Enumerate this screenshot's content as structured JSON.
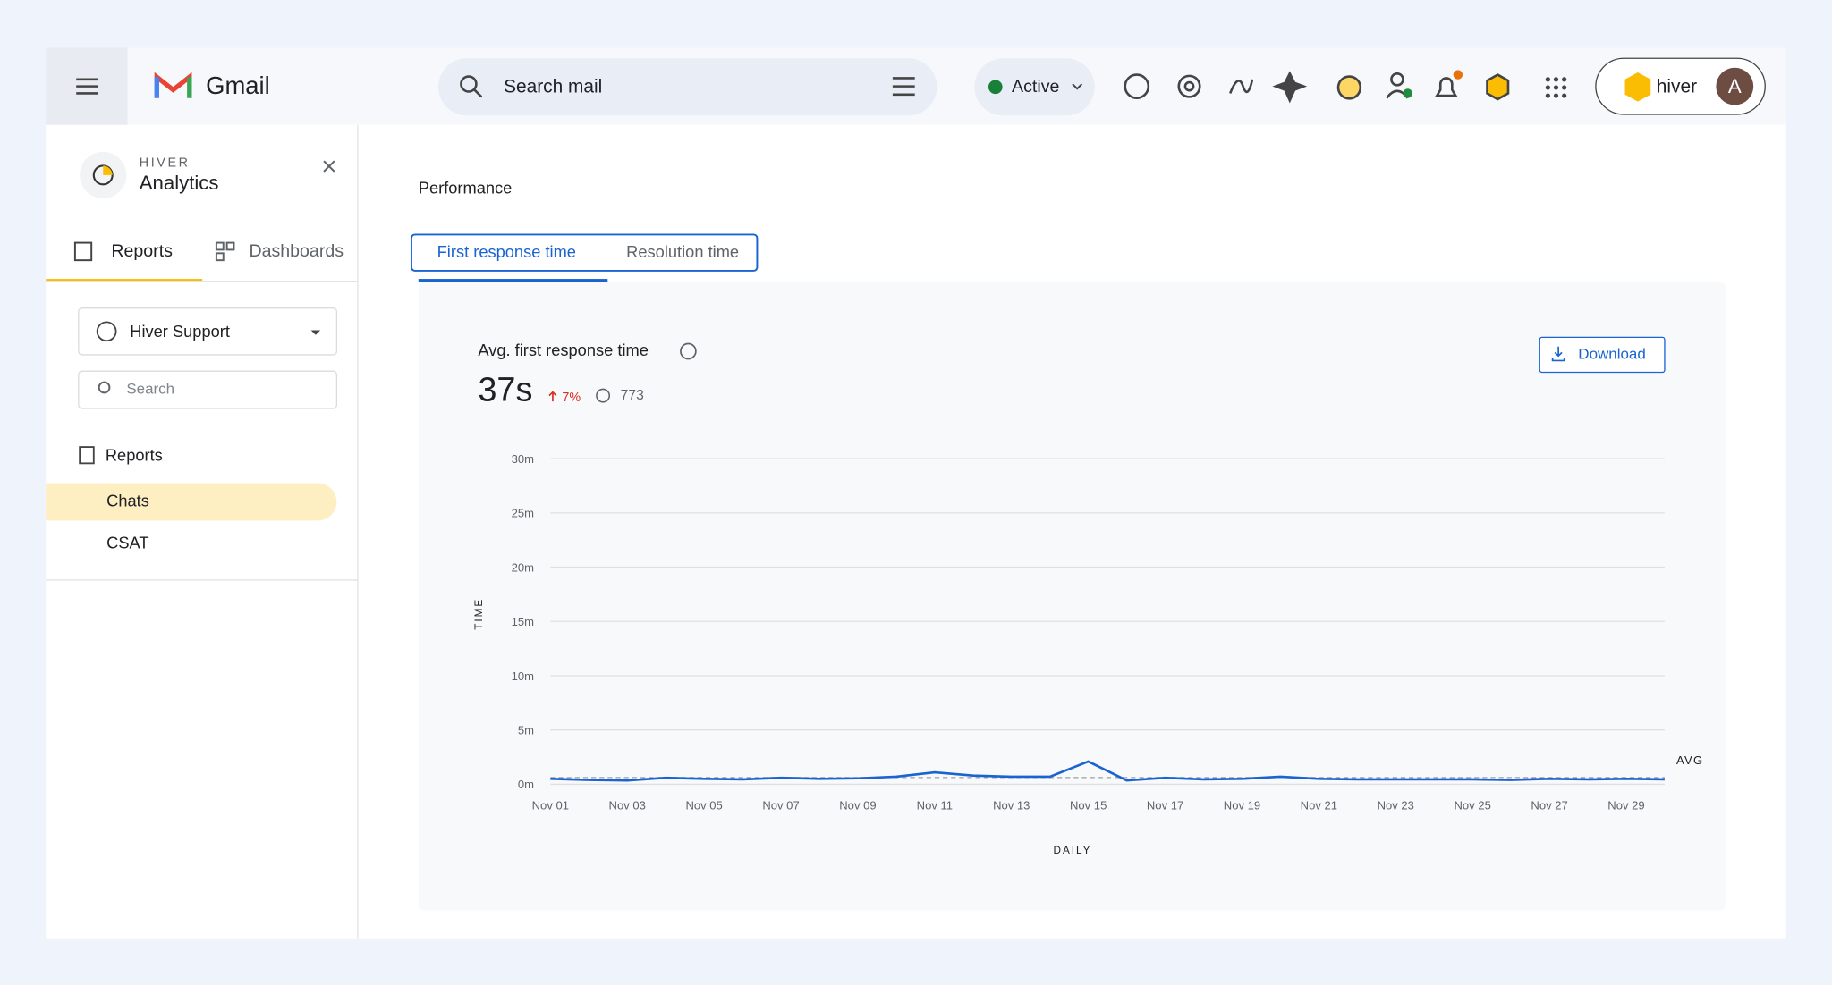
{
  "header": {
    "app_name": "Gmail",
    "search_placeholder": "Search mail",
    "status": "Active",
    "brand": "hiver",
    "avatar": "A"
  },
  "sidebar": {
    "brand": "HIVER",
    "title": "Analytics",
    "tabs": [
      "Reports",
      "Dashboards"
    ],
    "inbox": "Hiver Support",
    "search_placeholder": "Search",
    "section": "Reports",
    "items": [
      "Chats",
      "CSAT"
    ]
  },
  "main": {
    "heading": "Performance",
    "tabs": [
      "First response time",
      "Resolution time"
    ],
    "metric": {
      "title": "Avg. first response time",
      "value": "37s",
      "change": "7%",
      "count": 773
    },
    "download": "Download",
    "chart": {
      "type": "line",
      "y_label": "TIME",
      "x_label": "DAILY",
      "categories": [
        "Nov 01",
        null,
        "Nov 03",
        null,
        "Nov 05",
        null,
        "Nov 07",
        null,
        "Nov 09",
        null,
        "Nov 11",
        null,
        "Nov 13",
        null,
        "Nov 15",
        null,
        "Nov 17",
        null,
        "Nov 19",
        null,
        "Nov 21",
        null,
        "Nov 23",
        null,
        "Nov 25",
        null,
        "Nov 27",
        null,
        "Nov 29",
        null
      ],
      "series": [
        {
          "color": "#1a63d2",
          "values": [
            0.5,
            0.4,
            0.35,
            0.6,
            0.5,
            0.45,
            0.6,
            0.5,
            0.55,
            0.7,
            1.1,
            0.8,
            0.7,
            0.7,
            2.1,
            0.35,
            0.6,
            0.45,
            0.5,
            0.7,
            0.5,
            0.45,
            0.45,
            0.45,
            0.45,
            0.4,
            0.5,
            0.45,
            0.5,
            0.45
          ]
        }
      ],
      "avg": {
        "label": "AVG",
        "value": 0.62
      },
      "ylim": [
        0,
        30
      ],
      "yticks": [
        {
          "value": 0,
          "label": "0m"
        },
        {
          "value": 5,
          "label": "5m"
        },
        {
          "value": 10,
          "label": "10m"
        },
        {
          "value": 15,
          "label": "15m"
        },
        {
          "value": 20,
          "label": "20m"
        },
        {
          "value": 25,
          "label": "25m"
        },
        {
          "value": 30,
          "label": "30m"
        }
      ],
      "grid": true
    }
  }
}
